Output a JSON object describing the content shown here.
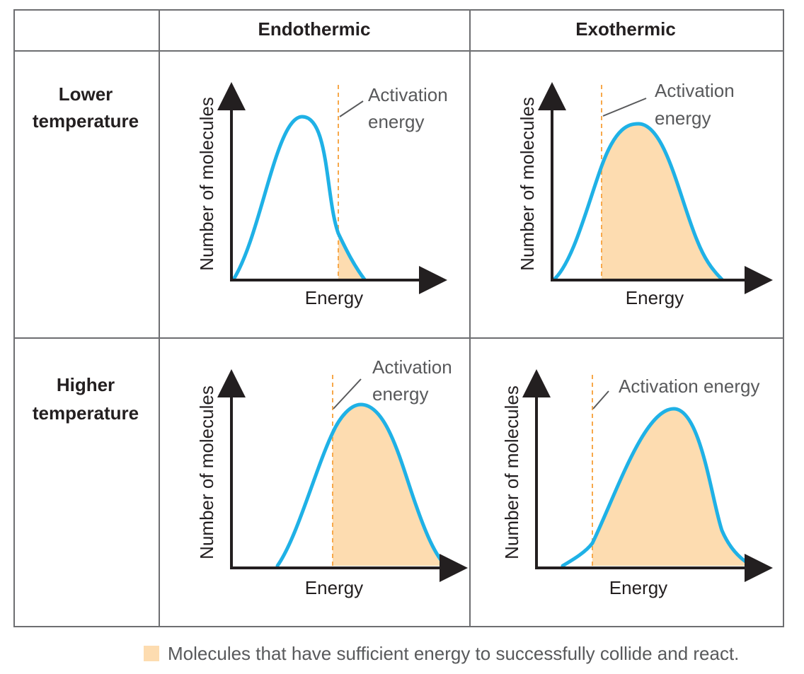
{
  "columns": [
    "Endothermic",
    "Exothermic"
  ],
  "rows": [
    {
      "line1": "Lower",
      "line2": "temperature"
    },
    {
      "line1": "Higher",
      "line2": "temperature"
    }
  ],
  "axis": {
    "y": "Number of molecules",
    "x": "Energy"
  },
  "annotations": {
    "two_line_1": "Activation",
    "two_line_2": "energy",
    "one_line": "Activation energy"
  },
  "legend": "Molecules that have sufficient energy to successfully collide and react.",
  "colors": {
    "curve": "#1fb1e6",
    "fill": "#fddcb0",
    "threshold": "#f7a84a",
    "axes": "#231f20",
    "grid": "#6d6e71"
  }
}
